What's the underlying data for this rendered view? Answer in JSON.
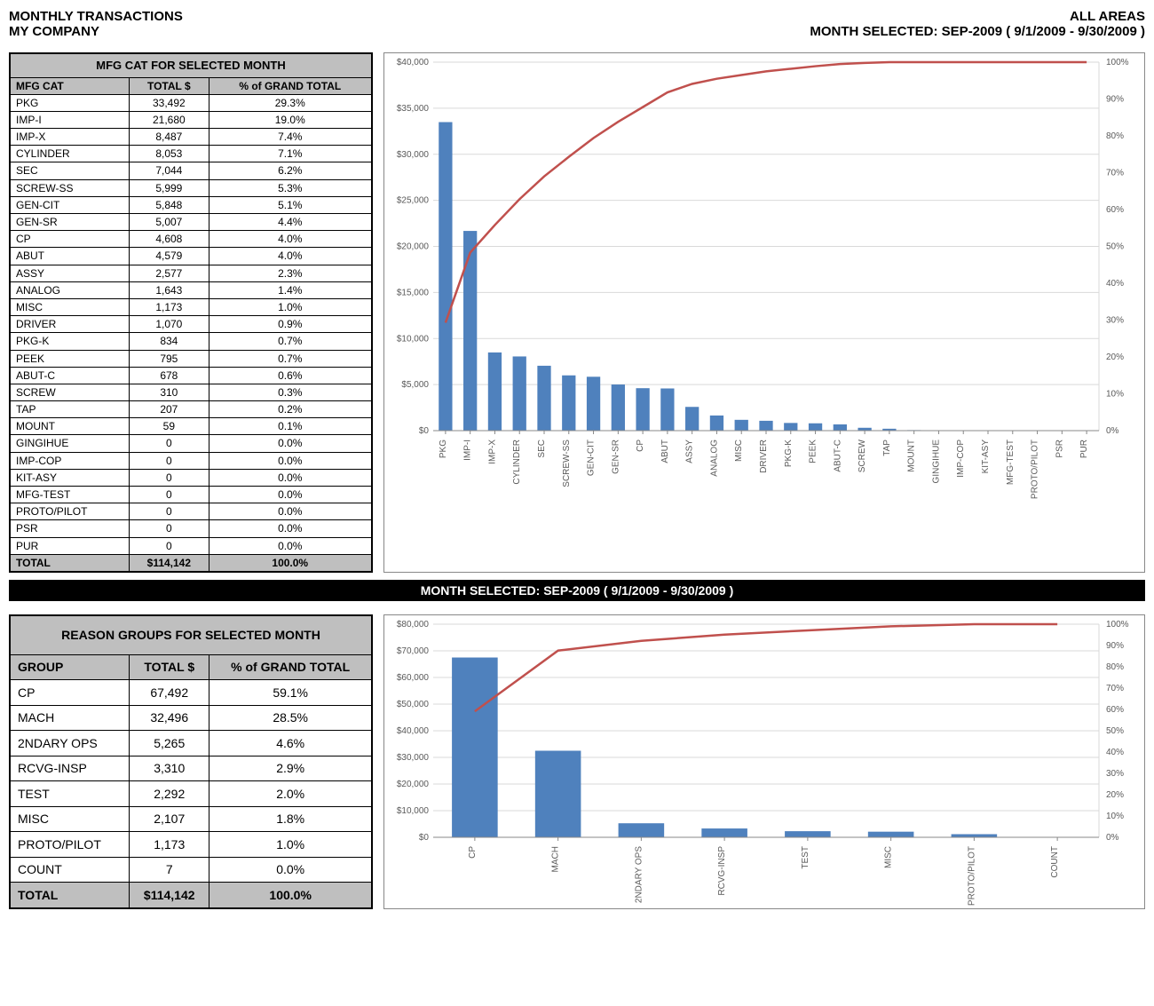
{
  "header": {
    "title1": "MONTHLY TRANSACTIONS",
    "title2": "MY COMPANY",
    "areas": "ALL AREAS",
    "month_line": "MONTH SELECTED:    SEP-2009    (   9/1/2009    -   9/30/2009   )"
  },
  "table1": {
    "title": "MFG CAT FOR SELECTED MONTH",
    "columns": [
      "MFG CAT",
      "TOTAL $",
      "% of GRAND TOTAL"
    ],
    "rows": [
      [
        "PKG",
        "33,492",
        "29.3%"
      ],
      [
        "IMP-I",
        "21,680",
        "19.0%"
      ],
      [
        "IMP-X",
        "8,487",
        "7.4%"
      ],
      [
        "CYLINDER",
        "8,053",
        "7.1%"
      ],
      [
        "SEC",
        "7,044",
        "6.2%"
      ],
      [
        "SCREW-SS",
        "5,999",
        "5.3%"
      ],
      [
        "GEN-CIT",
        "5,848",
        "5.1%"
      ],
      [
        "GEN-SR",
        "5,007",
        "4.4%"
      ],
      [
        "CP",
        "4,608",
        "4.0%"
      ],
      [
        "ABUT",
        "4,579",
        "4.0%"
      ],
      [
        "ASSY",
        "2,577",
        "2.3%"
      ],
      [
        "ANALOG",
        "1,643",
        "1.4%"
      ],
      [
        "MISC",
        "1,173",
        "1.0%"
      ],
      [
        "DRIVER",
        "1,070",
        "0.9%"
      ],
      [
        "PKG-K",
        "834",
        "0.7%"
      ],
      [
        "PEEK",
        "795",
        "0.7%"
      ],
      [
        "ABUT-C",
        "678",
        "0.6%"
      ],
      [
        "SCREW",
        "310",
        "0.3%"
      ],
      [
        "TAP",
        "207",
        "0.2%"
      ],
      [
        "MOUNT",
        "59",
        "0.1%"
      ],
      [
        "GINGIHUE",
        "0",
        "0.0%"
      ],
      [
        "IMP-COP",
        "0",
        "0.0%"
      ],
      [
        "KIT-ASY",
        "0",
        "0.0%"
      ],
      [
        "MFG-TEST",
        "0",
        "0.0%"
      ],
      [
        "PROTO/PILOT",
        "0",
        "0.0%"
      ],
      [
        "PSR",
        "0",
        "0.0%"
      ],
      [
        "PUR",
        "0",
        "0.0%"
      ]
    ],
    "total": [
      "TOTAL",
      "$114,142",
      "100.0%"
    ]
  },
  "chart1": {
    "type": "pareto",
    "categories": [
      "PKG",
      "IMP-I",
      "IMP-X",
      "CYLINDER",
      "SEC",
      "SCREW-SS",
      "GEN-CIT",
      "GEN-SR",
      "CP",
      "ABUT",
      "ASSY",
      "ANALOG",
      "MISC",
      "DRIVER",
      "PKG-K",
      "PEEK",
      "ABUT-C",
      "SCREW",
      "TAP",
      "MOUNT",
      "GINGIHUE",
      "IMP-COP",
      "KIT-ASY",
      "MFG-TEST",
      "PROTO/PILOT",
      "PSR",
      "PUR"
    ],
    "values": [
      33492,
      21680,
      8487,
      8053,
      7044,
      5999,
      5848,
      5007,
      4608,
      4579,
      2577,
      1643,
      1173,
      1070,
      834,
      795,
      678,
      310,
      207,
      59,
      0,
      0,
      0,
      0,
      0,
      0,
      0
    ],
    "cum_pct": [
      29.3,
      48.3,
      55.8,
      62.8,
      69.0,
      74.3,
      79.4,
      83.8,
      87.8,
      91.8,
      94.1,
      95.5,
      96.5,
      97.5,
      98.2,
      98.9,
      99.5,
      99.8,
      100.0,
      100.0,
      100.0,
      100.0,
      100.0,
      100.0,
      100.0,
      100.0,
      100.0
    ],
    "y1_max": 40000,
    "y1_step": 5000,
    "y2_max": 100,
    "y2_step": 10,
    "bar_color": "#4f81bd",
    "line_color": "#c0504d",
    "grid_color": "#d9d9d9",
    "label_color": "#595959",
    "label_fontsize": 10
  },
  "black_bar": "MONTH SELECTED:    SEP-2009    (   9/1/2009    -   9/30/2009   )",
  "table2": {
    "title": "REASON GROUPS FOR SELECTED MONTH",
    "columns": [
      "GROUP",
      "TOTAL $",
      "% of GRAND TOTAL"
    ],
    "rows": [
      [
        "CP",
        "67,492",
        "59.1%"
      ],
      [
        "MACH",
        "32,496",
        "28.5%"
      ],
      [
        "2NDARY OPS",
        "5,265",
        "4.6%"
      ],
      [
        "RCVG-INSP",
        "3,310",
        "2.9%"
      ],
      [
        "TEST",
        "2,292",
        "2.0%"
      ],
      [
        "MISC",
        "2,107",
        "1.8%"
      ],
      [
        "PROTO/PILOT",
        "1,173",
        "1.0%"
      ],
      [
        "COUNT",
        "7",
        "0.0%"
      ]
    ],
    "total": [
      "TOTAL",
      "$114,142",
      "100.0%"
    ]
  },
  "chart2": {
    "type": "pareto",
    "categories": [
      "CP",
      "MACH",
      "2NDARY OPS",
      "RCVG-INSP",
      "TEST",
      "MISC",
      "PROTO/PILOT",
      "COUNT"
    ],
    "values": [
      67492,
      32496,
      5265,
      3310,
      2292,
      2107,
      1173,
      7
    ],
    "cum_pct": [
      59.1,
      87.6,
      92.2,
      95.1,
      97.1,
      99.0,
      100.0,
      100.0
    ],
    "y1_max": 80000,
    "y1_step": 10000,
    "y2_max": 100,
    "y2_step": 10,
    "bar_color": "#4f81bd",
    "line_color": "#c0504d",
    "grid_color": "#d9d9d9",
    "label_color": "#595959",
    "label_fontsize": 10
  }
}
